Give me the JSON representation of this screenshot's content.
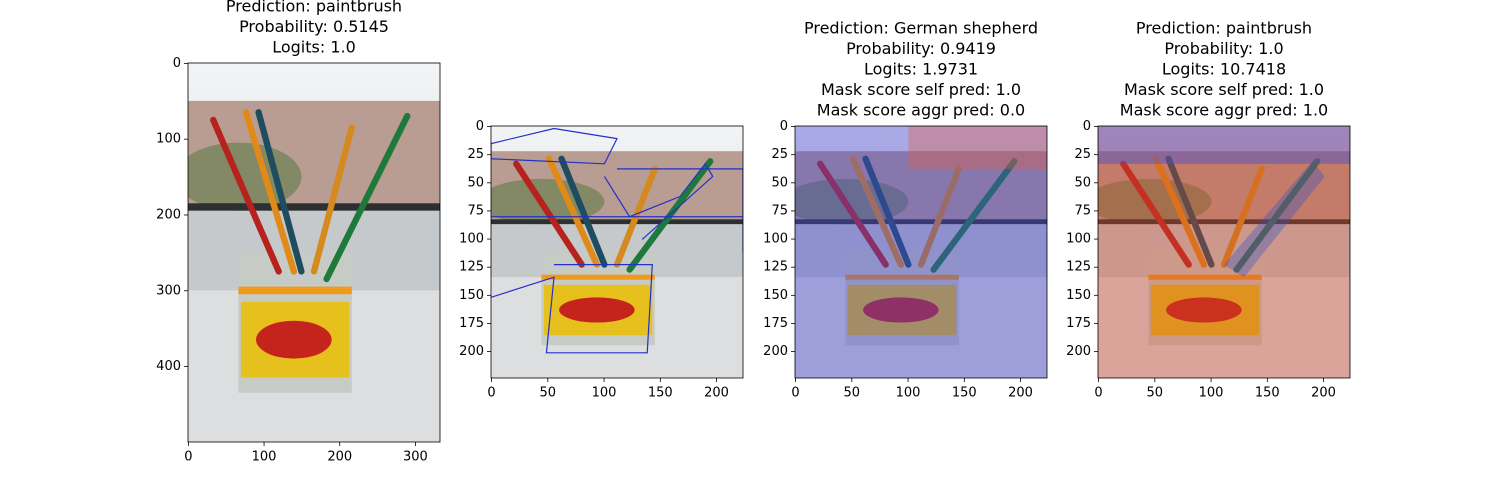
{
  "chart_data": [
    {
      "type": "image",
      "title_lines": [
        "Prediction: paintbrush",
        "Probability: 0.5145",
        "Logits: 1.0"
      ],
      "xlim": [
        -0.5,
        332.5
      ],
      "ylim": [
        499.5,
        -0.5
      ],
      "xticks": [
        0,
        100,
        200,
        300
      ],
      "yticks": [
        0,
        100,
        200,
        300,
        400
      ]
    },
    {
      "type": "image",
      "title_lines": [],
      "xlim": [
        -0.5,
        223.5
      ],
      "ylim": [
        223.5,
        -0.5
      ],
      "xticks": [
        0,
        50,
        100,
        150,
        200
      ],
      "yticks": [
        0,
        25,
        50,
        75,
        100,
        125,
        150,
        175,
        200
      ]
    },
    {
      "type": "image",
      "title_lines": [
        "Prediction: German shepherd",
        "Probability: 0.9419",
        "Logits: 1.9731",
        "Mask score self pred: 1.0",
        "Mask score aggr pred: 0.0"
      ],
      "xlim": [
        -0.5,
        223.5
      ],
      "ylim": [
        223.5,
        -0.5
      ],
      "xticks": [
        0,
        50,
        100,
        150,
        200
      ],
      "yticks": [
        0,
        25,
        50,
        75,
        100,
        125,
        150,
        175,
        200
      ]
    },
    {
      "type": "image",
      "title_lines": [
        "Prediction: paintbrush",
        "Probability: 1.0",
        "Logits: 10.7418",
        "Mask score self pred: 1.0",
        "Mask score aggr pred: 1.0"
      ],
      "xlim": [
        -0.5,
        223.5
      ],
      "ylim": [
        223.5,
        -0.5
      ],
      "xticks": [
        0,
        50,
        100,
        150,
        200
      ],
      "yticks": [
        0,
        25,
        50,
        75,
        100,
        125,
        150,
        175,
        200
      ]
    }
  ]
}
